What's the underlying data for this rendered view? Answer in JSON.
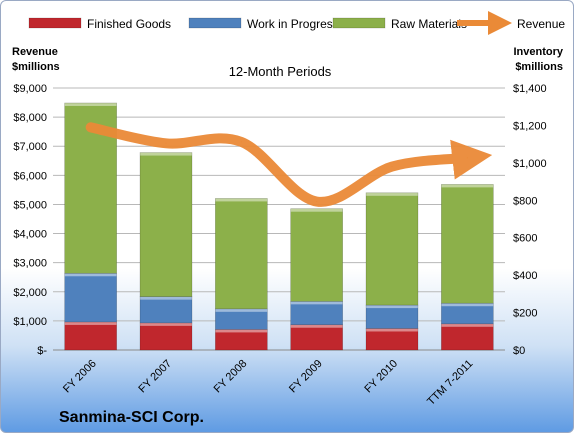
{
  "company": "Sanmina-SCI Corp.",
  "chart_data": {
    "type": "bar",
    "stacked": true,
    "title": "12-Month Periods",
    "ylabel_left": "Revenue\n$millions",
    "ylabel_right": "Inventory\n$millions",
    "categories": [
      "FY 2006",
      "FY 2007",
      "FY 2008",
      "FY 2009",
      "FY 2010",
      "TTM 7-2011"
    ],
    "left_axis": {
      "ylim": [
        0,
        9000
      ],
      "ticks": [
        "$-",
        "$1,000",
        "$2,000",
        "$3,000",
        "$4,000",
        "$5,000",
        "$6,000",
        "$7,000",
        "$8,000",
        "$9,000"
      ]
    },
    "right_axis": {
      "ylim": [
        0,
        1400
      ],
      "ticks": [
        "$0",
        "$200",
        "$400",
        "$600",
        "$800",
        "$1,000",
        "$1,200",
        "$1,400"
      ]
    },
    "legend_position": "top",
    "series": [
      {
        "name": "Finished Goods",
        "axis": "right",
        "kind": "bar",
        "color": "#c0272d",
        "values": [
          150,
          145,
          110,
          135,
          115,
          140
        ]
      },
      {
        "name": "Work in Progress",
        "axis": "right",
        "kind": "bar",
        "color": "#4f81bd",
        "values": [
          260,
          140,
          110,
          125,
          125,
          110
        ]
      },
      {
        "name": "Raw Materials",
        "axis": "right",
        "kind": "bar",
        "color": "#8cb04a",
        "values": [
          910,
          770,
          590,
          495,
          600,
          635
        ]
      },
      {
        "name": "Revenue",
        "axis": "left",
        "kind": "line",
        "color": "#ea8a37",
        "values": [
          7650,
          7100,
          7150,
          5100,
          6300,
          6600
        ]
      }
    ]
  }
}
